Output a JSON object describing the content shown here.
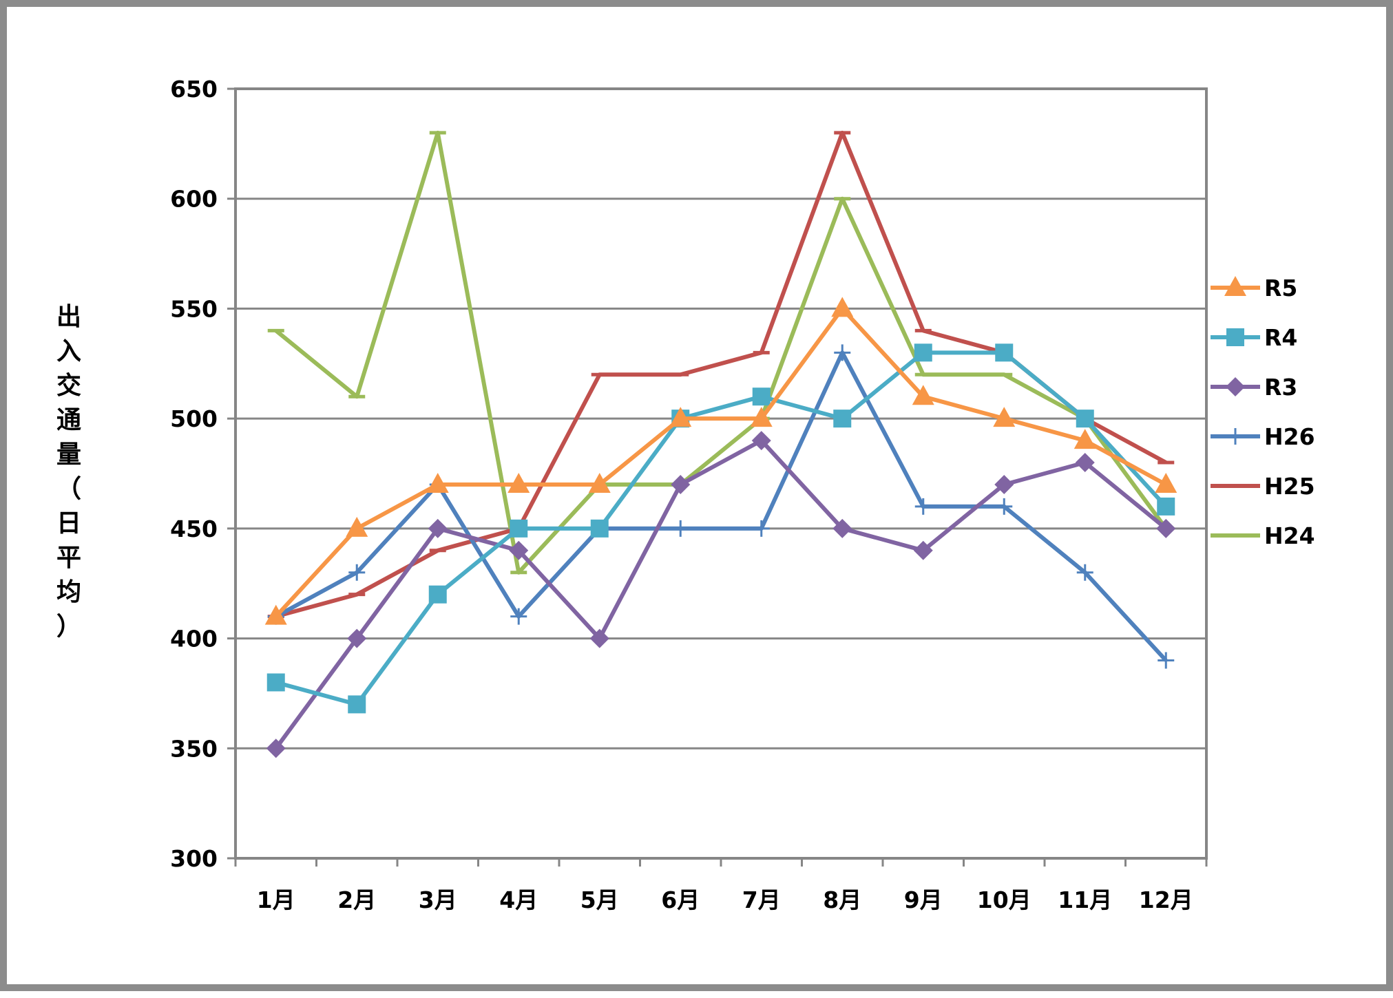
{
  "chart_data": {
    "type": "line",
    "title": "",
    "xlabel": "",
    "ylabel": "出入交通量（日平均）",
    "categories": [
      "1月",
      "2月",
      "3月",
      "4月",
      "5月",
      "6月",
      "7月",
      "8月",
      "9月",
      "10月",
      "11月",
      "12月"
    ],
    "ylim": [
      300,
      650
    ],
    "yticks": [
      300,
      350,
      400,
      450,
      500,
      550,
      600,
      650
    ],
    "grid": true,
    "legend_position": "right",
    "series": [
      {
        "name": "R5",
        "color": "#f79646",
        "marker": "triangle",
        "values": [
          410,
          450,
          470,
          470,
          470,
          500,
          500,
          550,
          510,
          500,
          490,
          470
        ]
      },
      {
        "name": "R4",
        "color": "#4bacc6",
        "marker": "square",
        "values": [
          380,
          370,
          420,
          450,
          450,
          500,
          510,
          500,
          530,
          530,
          500,
          460
        ]
      },
      {
        "name": "R3",
        "color": "#8064a2",
        "marker": "diamond",
        "values": [
          350,
          400,
          450,
          440,
          400,
          470,
          490,
          450,
          440,
          470,
          480,
          450
        ]
      },
      {
        "name": "H26",
        "color": "#4f81bd",
        "marker": "plus",
        "values": [
          410,
          430,
          470,
          410,
          450,
          450,
          450,
          530,
          460,
          460,
          430,
          390
        ]
      },
      {
        "name": "H25",
        "color": "#c0504d",
        "marker": "dash",
        "values": [
          410,
          420,
          440,
          450,
          520,
          520,
          530,
          630,
          540,
          530,
          500,
          480
        ]
      },
      {
        "name": "H24",
        "color": "#9bbb59",
        "marker": "dash",
        "values": [
          540,
          510,
          630,
          430,
          470,
          470,
          500,
          600,
          520,
          520,
          500,
          450
        ]
      }
    ]
  }
}
